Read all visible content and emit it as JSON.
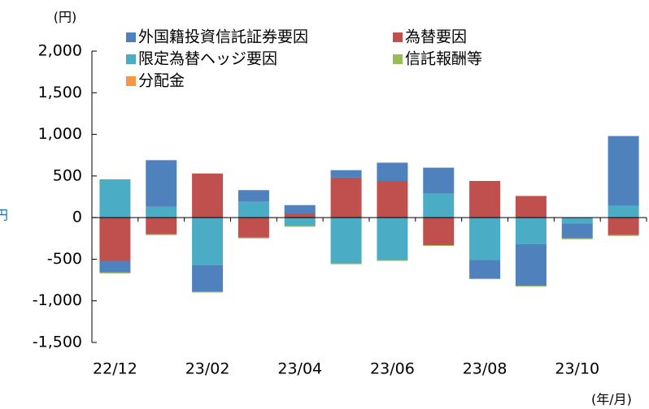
{
  "chart_data": {
    "type": "bar",
    "stacked": true,
    "unit_label": "(円)",
    "x_unit_label": "(年/月)",
    "side_note": "円",
    "categories": [
      "22/12",
      null,
      "23/02",
      null,
      "23/04",
      null,
      "23/06",
      null,
      "23/08",
      null,
      "23/10",
      null
    ],
    "series": [
      {
        "name": "外国籍投資信託証券要因",
        "color": "#4f81bd",
        "values": [
          -140,
          560,
          -320,
          140,
          100,
          90,
          220,
          310,
          -220,
          -500,
          -180,
          840
        ]
      },
      {
        "name": "為替要因",
        "color": "#c0504d",
        "values": [
          -520,
          -200,
          530,
          -240,
          50,
          480,
          440,
          -330,
          440,
          260,
          0,
          -210
        ]
      },
      {
        "name": "限定為替ヘッジ要因",
        "color": "#4bacc6",
        "values": [
          460,
          130,
          -570,
          190,
          -100,
          -550,
          -510,
          290,
          -510,
          -320,
          -70,
          140
        ]
      },
      {
        "name": "信託報酬等",
        "color": "#9bbb59",
        "values": [
          -10,
          -10,
          -10,
          -10,
          -10,
          -10,
          -10,
          -10,
          -10,
          -10,
          -10,
          -10
        ]
      },
      {
        "name": "分配金",
        "color": "#f79646",
        "values": [
          0,
          0,
          0,
          0,
          0,
          0,
          0,
          0,
          0,
          0,
          0,
          0
        ]
      }
    ],
    "ylim": [
      -1500,
      2000
    ],
    "yticks": [
      {
        "value": -1500,
        "label": "-1,500"
      },
      {
        "value": -1000,
        "label": "-1,000"
      },
      -500,
      0,
      500,
      {
        "value": 1000,
        "label": "1,000"
      },
      {
        "value": 1500,
        "label": "1,500"
      },
      {
        "value": 2000,
        "label": "2,000"
      }
    ]
  }
}
